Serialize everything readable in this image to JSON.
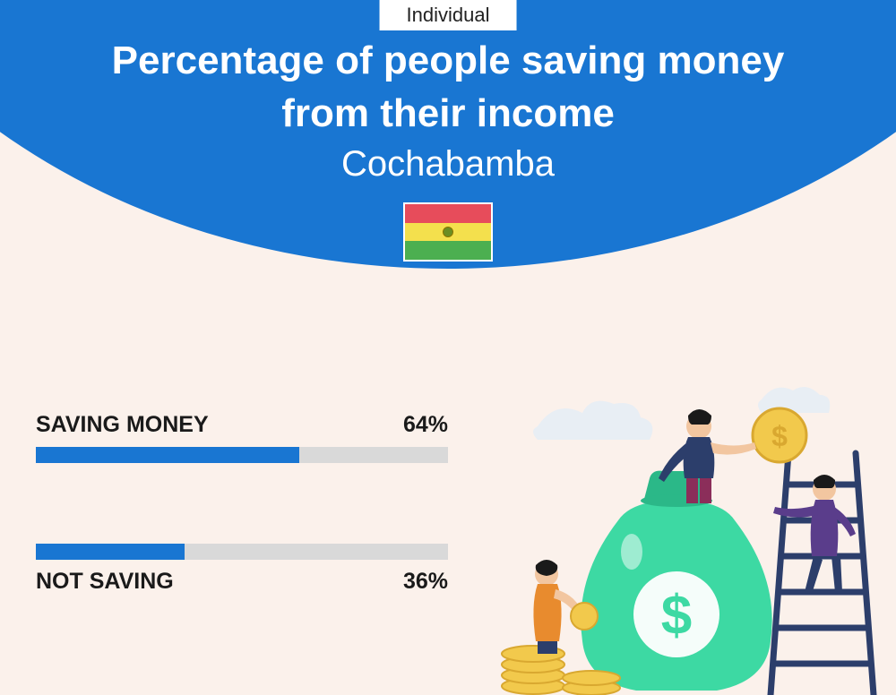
{
  "badge": "Individual",
  "title_line1": "Percentage of people saving money",
  "title_line2": "from their income",
  "subtitle": "Cochabamba",
  "flag": {
    "top": "#e74c5b",
    "mid": "#f4e04d",
    "bot": "#4caf50"
  },
  "colors": {
    "header_bg": "#1976d2",
    "page_bg": "#fbf1eb",
    "bar_fill": "#1976d2",
    "bar_track": "#d9d9d9",
    "text": "#1a1a1a"
  },
  "bars": [
    {
      "label": "SAVING MONEY",
      "value": 64,
      "display": "64%",
      "label_pos": "above"
    },
    {
      "label": "NOT SAVING",
      "value": 36,
      "display": "36%",
      "label_pos": "below"
    }
  ],
  "illustration": {
    "bag": "#3dd9a3",
    "bag_dark": "#2bb888",
    "coin": "#f2c94c",
    "coin_dark": "#d9a830",
    "ladder": "#2c3e6b",
    "cloud": "#e8eef4",
    "person1_top": "#2c3e6b",
    "person1_bot": "#8b2e5a",
    "person2_top": "#5a3d8b",
    "person2_bot": "#2c3e6b",
    "person3_top": "#e88b2e",
    "person3_bot": "#2c3e6b",
    "skin": "#f2c6a0",
    "hair": "#1a1a1a"
  }
}
